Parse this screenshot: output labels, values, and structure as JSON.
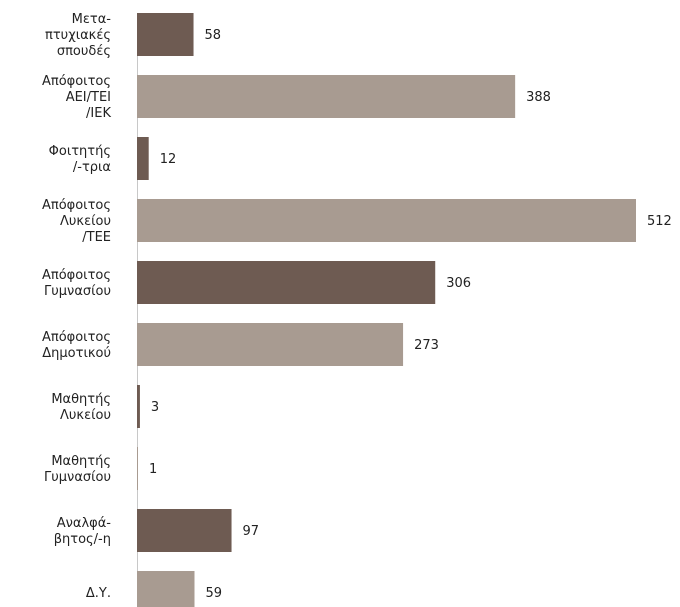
{
  "chart_data": {
    "type": "bar",
    "orientation": "horizontal",
    "title": "",
    "xlabel": "",
    "ylabel": "",
    "grid": false,
    "legend": "none",
    "xlim": [
      0,
      512
    ],
    "categories": [
      [
        "Μετα-",
        "πτυχιακές",
        "σπουδές"
      ],
      [
        "Απόφοιτος",
        "ΑΕΙ/ΤΕΙ",
        "/ΙΕΚ"
      ],
      [
        "Φοιτητής",
        "/-τρια"
      ],
      [
        "Απόφοιτος",
        "Λυκείου",
        "/ΤΕΕ"
      ],
      [
        "Απόφοιτος",
        "Γυμνασίου"
      ],
      [
        "Απόφοιτος",
        "Δημοτικού"
      ],
      [
        "Μαθητής",
        "Λυκείου"
      ],
      [
        "Μαθητής",
        "Γυμνασίου"
      ],
      [
        "Αναλφά-",
        "βητος/-η"
      ],
      [
        "Δ.Υ."
      ]
    ],
    "values": [
      58,
      388,
      12,
      512,
      306,
      273,
      3,
      1,
      97,
      59
    ],
    "bar_colors": [
      "#6e5b52",
      "#a89b91",
      "#6e5b52",
      "#a89b91",
      "#6e5b52",
      "#a89b91",
      "#6e5b52",
      "#a89b91",
      "#6e5b52",
      "#a89b91"
    ],
    "axis_line_color": "#c8c8c8"
  }
}
